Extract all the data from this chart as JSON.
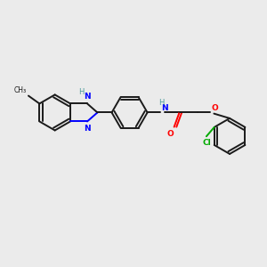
{
  "background_color": "#ebebeb",
  "bond_color": "#1a1a1a",
  "nitrogen_color": "#0000ff",
  "oxygen_color": "#ff0000",
  "chlorine_color": "#00aa00",
  "hydrogen_color": "#4a9a9a",
  "line_width": 1.4,
  "dbo": 0.11,
  "figsize": [
    3.0,
    3.0
  ],
  "dpi": 100,
  "xlim": [
    0,
    10
  ],
  "ylim": [
    0,
    10
  ]
}
